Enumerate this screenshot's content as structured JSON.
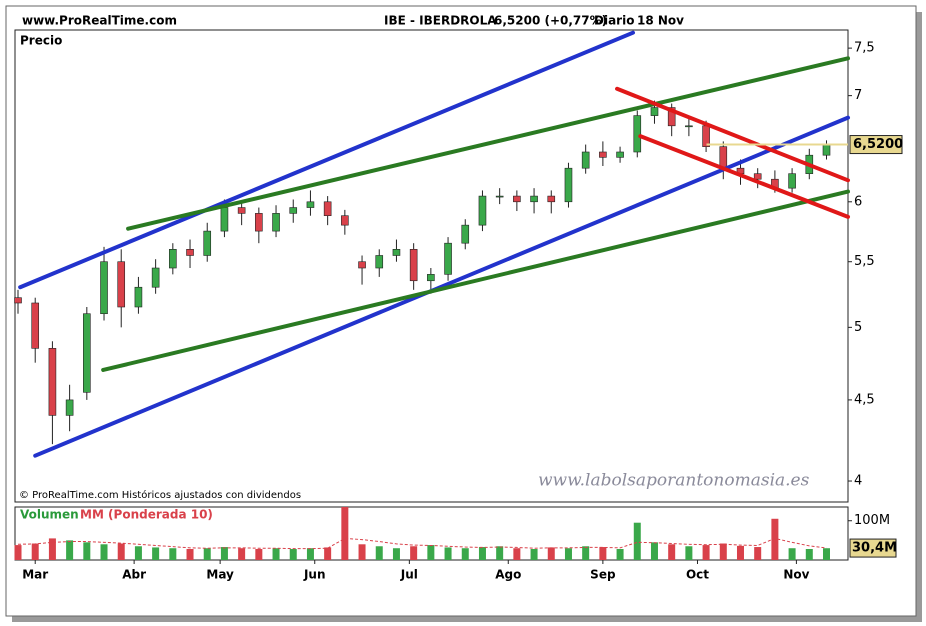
{
  "chart_data": {
    "type": "candlestick",
    "source": "www.ProRealTime.com",
    "title": "IBE - IBERDROLA",
    "price_text": "6,5200 (+0,77%)",
    "period": "Diario",
    "date": "18 Nov",
    "y_label": "Precio",
    "footnote": "© ProRealTime.com Históricos ajustados con dividendos",
    "watermark": "www.labolsaporantonomasia.es",
    "log_scale": true,
    "grid": false,
    "up_color": "#3aa84a",
    "down_color": "#d9414a",
    "x": [
      0,
      4,
      8,
      12,
      16,
      20,
      24,
      28,
      32,
      36,
      40,
      44,
      48,
      52,
      56,
      60,
      64,
      68,
      72,
      76,
      80,
      84,
      88,
      92,
      96,
      100,
      104,
      108,
      112,
      116,
      120,
      124,
      128,
      132,
      136,
      140,
      144,
      148,
      152,
      156,
      160,
      164,
      168,
      172,
      176,
      180,
      184,
      188
    ],
    "open": [
      5.22,
      5.18,
      4.85,
      4.4,
      4.55,
      5.1,
      5.5,
      5.15,
      5.3,
      5.45,
      5.6,
      5.55,
      5.75,
      5.95,
      5.9,
      5.75,
      5.9,
      5.95,
      6.0,
      5.88,
      5.5,
      5.45,
      5.55,
      5.6,
      5.35,
      5.4,
      5.65,
      5.8,
      6.05,
      6.05,
      6.0,
      6.05,
      6.0,
      6.3,
      6.45,
      6.4,
      6.45,
      6.8,
      6.88,
      6.7,
      6.7,
      6.5,
      6.3,
      6.25,
      6.2,
      6.12,
      6.25,
      6.42
    ],
    "high": [
      5.28,
      5.22,
      4.9,
      4.6,
      5.15,
      5.62,
      5.6,
      5.38,
      5.52,
      5.65,
      5.68,
      5.82,
      6.02,
      6.0,
      5.95,
      5.97,
      6.02,
      6.1,
      6.05,
      5.93,
      5.55,
      5.6,
      5.68,
      5.65,
      5.45,
      5.7,
      5.85,
      6.1,
      6.12,
      6.1,
      6.12,
      6.1,
      6.35,
      6.52,
      6.55,
      6.5,
      6.85,
      6.95,
      6.92,
      6.8,
      6.75,
      6.55,
      6.38,
      6.3,
      6.28,
      6.3,
      6.48,
      6.56
    ],
    "low": [
      5.1,
      4.75,
      4.22,
      4.3,
      4.5,
      5.05,
      5.0,
      5.1,
      5.25,
      5.4,
      5.45,
      5.5,
      5.7,
      5.8,
      5.65,
      5.7,
      5.82,
      5.88,
      5.8,
      5.72,
      5.32,
      5.38,
      5.5,
      5.28,
      5.25,
      5.35,
      5.6,
      5.75,
      5.98,
      5.92,
      5.9,
      5.9,
      5.95,
      6.25,
      6.32,
      6.35,
      6.4,
      6.72,
      6.6,
      6.6,
      6.45,
      6.2,
      6.15,
      6.12,
      6.08,
      6.08,
      6.2,
      6.38
    ],
    "close": [
      5.18,
      4.85,
      4.4,
      4.5,
      5.1,
      5.5,
      5.15,
      5.3,
      5.45,
      5.6,
      5.55,
      5.75,
      5.95,
      5.9,
      5.75,
      5.9,
      5.95,
      6.0,
      5.88,
      5.8,
      5.45,
      5.55,
      5.6,
      5.35,
      5.4,
      5.65,
      5.8,
      6.05,
      6.05,
      6.0,
      6.05,
      6.0,
      6.3,
      6.45,
      6.4,
      6.45,
      6.8,
      6.88,
      6.7,
      6.7,
      6.5,
      6.3,
      6.25,
      6.2,
      6.12,
      6.25,
      6.42,
      6.52
    ],
    "xlim": [
      -0.7,
      193
    ],
    "xticks": [
      {
        "value": 4,
        "label": "Mar"
      },
      {
        "value": 27,
        "label": "Abr"
      },
      {
        "value": 47,
        "label": "May"
      },
      {
        "value": 69,
        "label": "Jun"
      },
      {
        "value": 91,
        "label": "Jul"
      },
      {
        "value": 114,
        "label": "Ago"
      },
      {
        "value": 136,
        "label": "Sep"
      },
      {
        "value": 158,
        "label": "Oct"
      },
      {
        "value": 181,
        "label": "Nov"
      }
    ],
    "ylim": [
      3.88,
      7.7
    ],
    "yticks": [
      4,
      {
        "value": 4.5,
        "label": "4,5"
      },
      5,
      {
        "value": 5.5,
        "label": "5,5"
      },
      6,
      7,
      {
        "value": 7.5,
        "label": "7,5"
      }
    ],
    "last_price": {
      "value": 6.52,
      "label": "6,5200",
      "color": "#e8d890"
    },
    "trendlines": [
      {
        "color": "#2233cc",
        "x": [
          0.5,
          143
        ],
        "y": [
          5.3,
          7.67
        ]
      },
      {
        "color": "#2233cc",
        "x": [
          4,
          193
        ],
        "y": [
          4.15,
          6.78
        ]
      },
      {
        "color": "#2a7a22",
        "x": [
          25.6,
          193
        ],
        "y": [
          5.77,
          7.39
        ]
      },
      {
        "color": "#2a7a22",
        "x": [
          19.8,
          193
        ],
        "y": [
          4.7,
          6.09
        ]
      },
      {
        "color": "#e01818",
        "x": [
          139.3,
          193
        ],
        "y": [
          7.07,
          6.19
        ]
      },
      {
        "color": "#e01818",
        "x": [
          144.7,
          193
        ],
        "y": [
          6.6,
          5.87
        ]
      }
    ],
    "volume": {
      "name": "Volumen",
      "values": [
        38000000,
        42000000,
        55000000,
        50000000,
        45000000,
        40000000,
        42000000,
        35000000,
        32000000,
        30000000,
        28000000,
        30000000,
        33000000,
        30000000,
        28000000,
        30000000,
        28000000,
        30000000,
        32000000,
        135000000,
        40000000,
        35000000,
        30000000,
        35000000,
        38000000,
        32000000,
        30000000,
        33000000,
        35000000,
        30000000,
        28000000,
        32000000,
        30000000,
        35000000,
        33000000,
        28000000,
        95000000,
        45000000,
        40000000,
        35000000,
        38000000,
        42000000,
        36000000,
        33000000,
        105000000,
        30000000,
        28000000,
        30000000
      ],
      "ylim": [
        0,
        135000000
      ],
      "yticks": [
        {
          "value": 100000000,
          "label": "100M"
        }
      ],
      "ma": {
        "name": "MM (Ponderada 10)",
        "color": "#d9414a",
        "values": [
          40000000,
          41000000,
          45000000,
          47000000,
          47000000,
          45000000,
          43000000,
          40000000,
          37000000,
          34000000,
          31000000,
          30000000,
          31000000,
          31000000,
          30000000,
          30000000,
          29000000,
          29000000,
          30000000,
          55000000,
          52000000,
          47000000,
          41000000,
          38000000,
          37000000,
          35000000,
          33000000,
          32000000,
          33000000,
          32000000,
          30000000,
          31000000,
          31000000,
          32000000,
          32000000,
          31000000,
          45000000,
          44000000,
          42000000,
          40000000,
          39000000,
          40000000,
          38000000,
          37000000,
          55000000,
          45000000,
          36000000,
          30400000
        ]
      },
      "ma_label": {
        "value": 30400000,
        "label": "30,4M",
        "color": "#e8d890"
      }
    }
  }
}
